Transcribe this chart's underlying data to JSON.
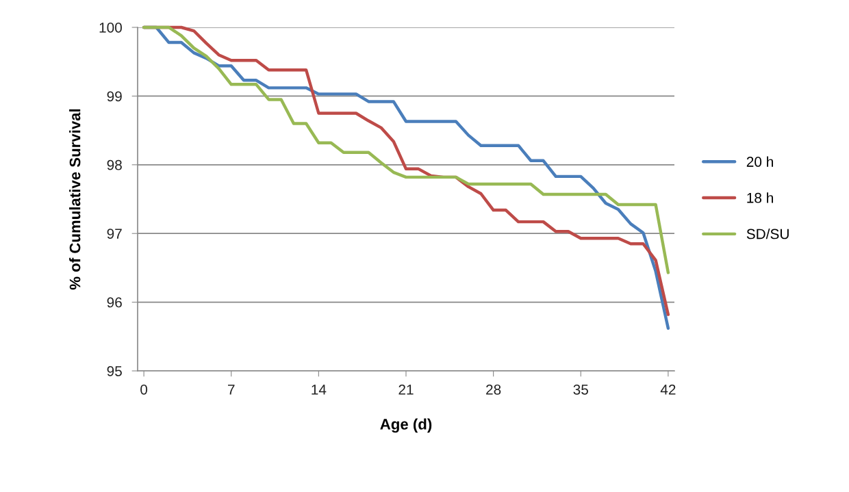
{
  "chart_data": {
    "type": "line",
    "xlabel": "Age (d)",
    "ylabel": "% of Cumulative Survival",
    "x": [
      0,
      1,
      2,
      3,
      4,
      5,
      6,
      7,
      8,
      9,
      10,
      11,
      12,
      13,
      14,
      15,
      16,
      17,
      18,
      19,
      20,
      21,
      22,
      23,
      24,
      25,
      26,
      27,
      28,
      29,
      30,
      31,
      32,
      33,
      34,
      35,
      36,
      37,
      38,
      39,
      40,
      41,
      42
    ],
    "series": [
      {
        "name": "20 h",
        "color": "#4a7ebb",
        "values": [
          100,
          100,
          99.78,
          99.78,
          99.63,
          99.55,
          99.44,
          99.44,
          99.23,
          99.23,
          99.12,
          99.12,
          99.12,
          99.12,
          99.03,
          99.03,
          99.03,
          99.03,
          98.92,
          98.92,
          98.92,
          98.63,
          98.63,
          98.63,
          98.63,
          98.63,
          98.43,
          98.28,
          98.28,
          98.28,
          98.28,
          98.06,
          98.06,
          97.83,
          97.83,
          97.83,
          97.66,
          97.44,
          97.35,
          97.14,
          97.01,
          96.45,
          95.62
        ]
      },
      {
        "name": "18 h",
        "color": "#be4b48",
        "values": [
          100,
          100,
          100,
          100,
          99.95,
          99.77,
          99.6,
          99.52,
          99.52,
          99.52,
          99.38,
          99.38,
          99.38,
          99.38,
          98.75,
          98.75,
          98.75,
          98.75,
          98.64,
          98.54,
          98.34,
          97.94,
          97.94,
          97.84,
          97.82,
          97.82,
          97.68,
          97.58,
          97.34,
          97.34,
          97.17,
          97.17,
          97.17,
          97.03,
          97.03,
          96.93,
          96.93,
          96.93,
          96.93,
          96.85,
          96.85,
          96.61,
          95.82
        ]
      },
      {
        "name": "SD/SU",
        "color": "#98b954",
        "values": [
          100,
          100,
          100,
          99.88,
          99.7,
          99.58,
          99.4,
          99.17,
          99.17,
          99.17,
          98.95,
          98.95,
          98.6,
          98.6,
          98.32,
          98.32,
          98.18,
          98.18,
          98.18,
          98.03,
          97.89,
          97.82,
          97.82,
          97.82,
          97.82,
          97.82,
          97.72,
          97.72,
          97.72,
          97.72,
          97.72,
          97.72,
          97.57,
          97.57,
          97.57,
          97.57,
          97.57,
          97.57,
          97.42,
          97.42,
          97.42,
          97.42,
          96.43
        ]
      }
    ],
    "xlim": [
      -0.5,
      42.5
    ],
    "xticks": [
      0,
      7,
      14,
      21,
      28,
      35,
      42
    ],
    "ylim": [
      95,
      100
    ],
    "yticks": [
      95,
      96,
      97,
      98,
      99,
      100
    ],
    "grid": "y",
    "legend": "right",
    "marker": "none",
    "line_style": "solid"
  }
}
